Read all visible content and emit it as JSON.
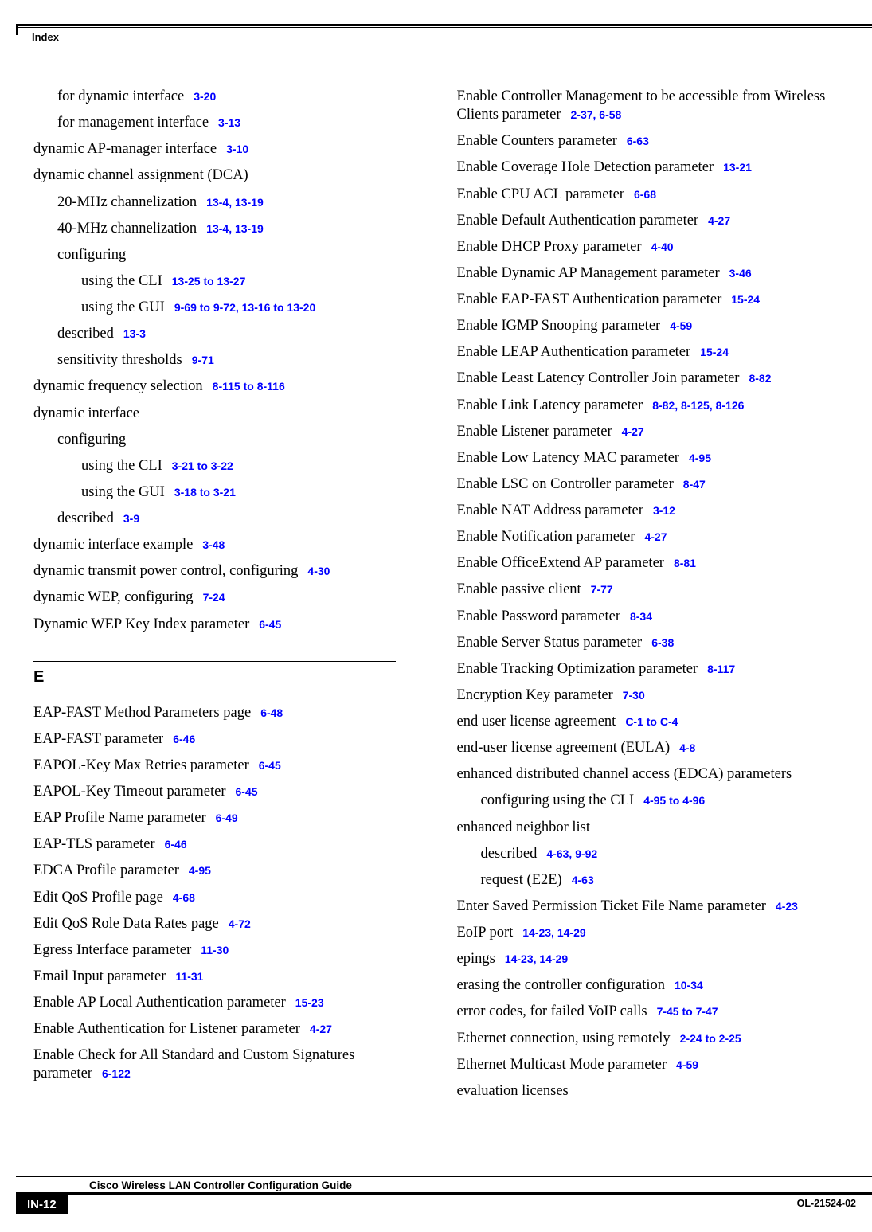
{
  "header": {
    "label": "Index"
  },
  "footer": {
    "title": "Cisco Wireless LAN Controller Configuration Guide",
    "page": "IN-12",
    "docid": "OL-21524-02"
  },
  "ref_color": "#0000ff",
  "leftcol": [
    {
      "i": 1,
      "t": "for dynamic interface",
      "r": "3-20"
    },
    {
      "i": 1,
      "t": "for management interface",
      "r": "3-13"
    },
    {
      "i": 0,
      "t": "dynamic AP-manager interface",
      "r": "3-10"
    },
    {
      "i": 0,
      "t": "dynamic channel assignment (DCA)"
    },
    {
      "i": 1,
      "t": "20-MHz channelization",
      "r": "13-4, 13-19"
    },
    {
      "i": 1,
      "t": "40-MHz channelization",
      "r": "13-4, 13-19"
    },
    {
      "i": 1,
      "t": "configuring"
    },
    {
      "i": 2,
      "t": "using the CLI",
      "r": "13-25 to 13-27"
    },
    {
      "i": 2,
      "t": "using the GUI",
      "r": "9-69 to 9-72, 13-16 to 13-20"
    },
    {
      "i": 1,
      "t": "described",
      "r": "13-3"
    },
    {
      "i": 1,
      "t": "sensitivity thresholds",
      "r": "9-71"
    },
    {
      "i": 0,
      "t": "dynamic frequency selection",
      "r": "8-115 to 8-116"
    },
    {
      "i": 0,
      "t": "dynamic interface"
    },
    {
      "i": 1,
      "t": "configuring"
    },
    {
      "i": 2,
      "t": "using the CLI",
      "r": "3-21 to 3-22"
    },
    {
      "i": 2,
      "t": "using the GUI",
      "r": "3-18 to 3-21"
    },
    {
      "i": 1,
      "t": "described",
      "r": "3-9"
    },
    {
      "i": 0,
      "t": "dynamic interface example",
      "r": "3-48"
    },
    {
      "i": 0,
      "t": "dynamic transmit power control, configuring",
      "r": "4-30"
    },
    {
      "i": 0,
      "t": "dynamic WEP, configuring",
      "r": "7-24"
    },
    {
      "i": 0,
      "t": "Dynamic WEP Key Index parameter",
      "r": "6-45"
    }
  ],
  "section_letter": "E",
  "leftcol2": [
    {
      "i": 0,
      "t": "EAP-FAST Method Parameters page",
      "r": "6-48"
    },
    {
      "i": 0,
      "t": "EAP-FAST parameter",
      "r": "6-46"
    },
    {
      "i": 0,
      "t": "EAPOL-Key Max Retries parameter",
      "r": "6-45"
    },
    {
      "i": 0,
      "t": "EAPOL-Key Timeout parameter",
      "r": "6-45"
    },
    {
      "i": 0,
      "t": "EAP Profile Name parameter",
      "r": "6-49"
    },
    {
      "i": 0,
      "t": "EAP-TLS parameter",
      "r": "6-46"
    },
    {
      "i": 0,
      "t": "EDCA Profile parameter",
      "r": "4-95"
    },
    {
      "i": 0,
      "t": "Edit QoS Profile page",
      "r": "4-68"
    },
    {
      "i": 0,
      "t": "Edit QoS Role Data Rates page",
      "r": "4-72"
    },
    {
      "i": 0,
      "t": "Egress Interface parameter",
      "r": "11-30"
    },
    {
      "i": 0,
      "t": "Email Input parameter",
      "r": "11-31"
    },
    {
      "i": 0,
      "t": "Enable AP Local Authentication parameter",
      "r": "15-23"
    },
    {
      "i": 0,
      "t": "Enable Authentication for Listener parameter",
      "r": "4-27"
    },
    {
      "i": 0,
      "t": "Enable Check for All Standard and Custom Signatures parameter",
      "r": "6-122"
    }
  ],
  "rightcol": [
    {
      "i": 0,
      "t": "Enable Controller Management to be accessible from Wireless Clients parameter",
      "r": "2-37, 6-58"
    },
    {
      "i": 0,
      "t": "Enable Counters parameter",
      "r": "6-63"
    },
    {
      "i": 0,
      "t": "Enable Coverage Hole Detection parameter",
      "r": "13-21"
    },
    {
      "i": 0,
      "t": "Enable CPU ACL parameter",
      "r": "6-68"
    },
    {
      "i": 0,
      "t": "Enable Default Authentication parameter",
      "r": "4-27"
    },
    {
      "i": 0,
      "t": "Enable DHCP Proxy parameter",
      "r": "4-40"
    },
    {
      "i": 0,
      "t": "Enable Dynamic AP Management parameter",
      "r": "3-46"
    },
    {
      "i": 0,
      "t": "Enable EAP-FAST Authentication parameter",
      "r": "15-24"
    },
    {
      "i": 0,
      "t": "Enable IGMP Snooping parameter",
      "r": "4-59"
    },
    {
      "i": 0,
      "t": "Enable LEAP Authentication parameter",
      "r": "15-24"
    },
    {
      "i": 0,
      "t": "Enable Least Latency Controller Join parameter",
      "r": "8-82"
    },
    {
      "i": 0,
      "t": "Enable Link Latency parameter",
      "r": "8-82, 8-125, 8-126"
    },
    {
      "i": 0,
      "t": "Enable Listener parameter",
      "r": "4-27"
    },
    {
      "i": 0,
      "t": "Enable Low Latency MAC parameter",
      "r": "4-95"
    },
    {
      "i": 0,
      "t": "Enable LSC on Controller parameter",
      "r": "8-47"
    },
    {
      "i": 0,
      "t": "Enable NAT Address parameter",
      "r": "3-12"
    },
    {
      "i": 0,
      "t": "Enable Notification parameter",
      "r": "4-27"
    },
    {
      "i": 0,
      "t": "Enable OfficeExtend AP parameter",
      "r": "8-81"
    },
    {
      "i": 0,
      "t": "Enable passive client",
      "r": "7-77"
    },
    {
      "i": 0,
      "t": "Enable Password parameter",
      "r": "8-34"
    },
    {
      "i": 0,
      "t": "Enable Server Status parameter",
      "r": "6-38"
    },
    {
      "i": 0,
      "t": "Enable Tracking Optimization parameter",
      "r": "8-117"
    },
    {
      "i": 0,
      "t": "Encryption Key parameter",
      "r": "7-30"
    },
    {
      "i": 0,
      "t": "end user license agreement",
      "r": "C-1 to C-4"
    },
    {
      "i": 0,
      "t": "end-user license agreement (EULA)",
      "r": "4-8"
    },
    {
      "i": 0,
      "t": "enhanced distributed channel access (EDCA) parameters"
    },
    {
      "i": 1,
      "t": "configuring using the CLI",
      "r": "4-95 to 4-96"
    },
    {
      "i": 0,
      "t": "enhanced neighbor list"
    },
    {
      "i": 1,
      "t": "described",
      "r": "4-63, 9-92"
    },
    {
      "i": 1,
      "t": "request (E2E)",
      "r": "4-63"
    },
    {
      "i": 0,
      "t": "Enter Saved Permission Ticket File Name parameter",
      "r": "4-23"
    },
    {
      "i": 0,
      "t": "EoIP port",
      "r": "14-23, 14-29"
    },
    {
      "i": 0,
      "t": "epings",
      "r": "14-23, 14-29"
    },
    {
      "i": 0,
      "t": "erasing the controller configuration",
      "r": "10-34"
    },
    {
      "i": 0,
      "t": "error codes, for failed VoIP calls",
      "r": "7-45 to 7-47"
    },
    {
      "i": 0,
      "t": "Ethernet connection, using remotely",
      "r": "2-24 to 2-25"
    },
    {
      "i": 0,
      "t": "Ethernet Multicast Mode parameter",
      "r": "4-59"
    },
    {
      "i": 0,
      "t": "evaluation licenses"
    }
  ]
}
